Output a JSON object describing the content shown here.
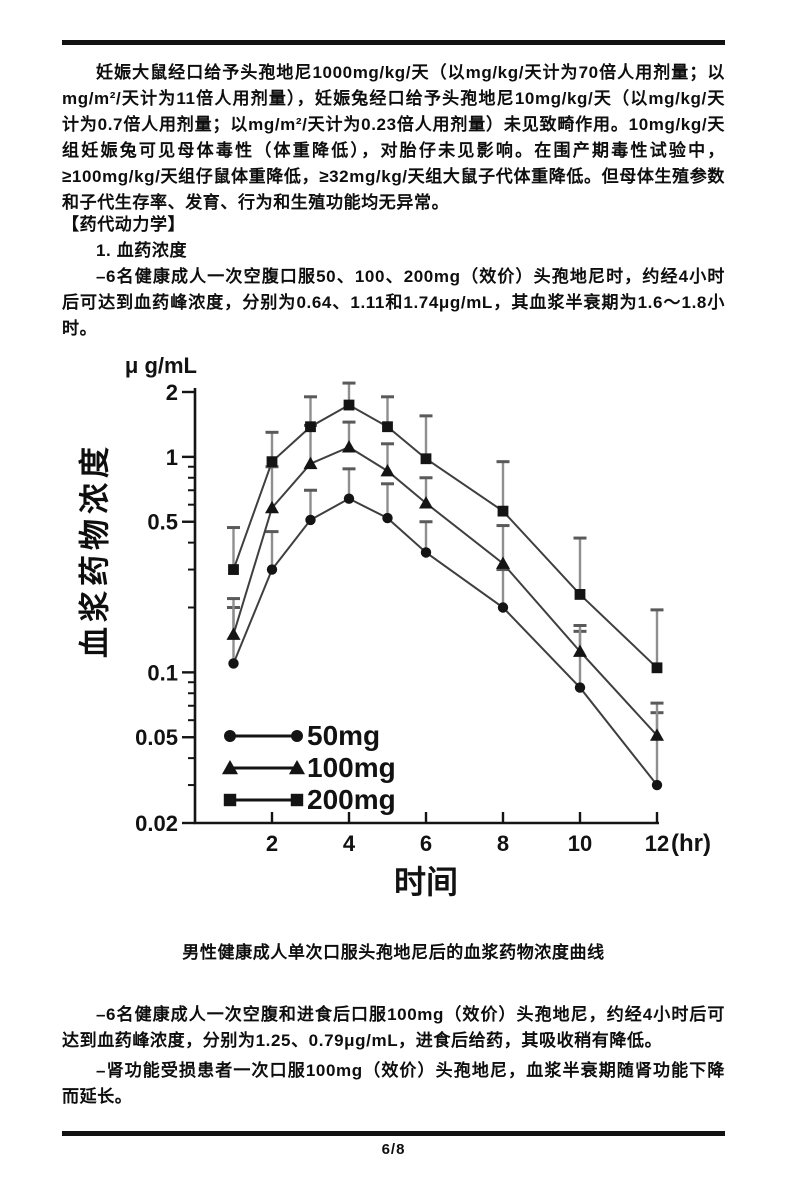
{
  "content": {
    "p_repro": "妊娠大鼠经口给予头孢地尼1000mg/kg/天（以mg/kg/天计为70倍人用剂量；以mg/m²/天计为11倍人用剂量），妊娠兔经口给予头孢地尼10mg/kg/天（以mg/kg/天计为0.7倍人用剂量；以mg/m²/天计为0.23倍人用剂量）未见致畸作用。10mg/kg/天组妊娠兔可见母体毒性（体重降低），对胎仔未见影响。在围产期毒性试验中，≥100mg/kg/天组仔鼠体重降低，≥32mg/kg/天组大鼠子代体重降低。但母体生殖参数和子代生存率、发育、行为和生殖功能均无异常。",
    "section_pk": "【药代动力学】",
    "item1": "1. 血药浓度",
    "p_single_dose": "–6名健康成人一次空腹口服50、100、200mg（效价）头孢地尼时，约经4小时后可达到血药峰浓度，分别为0.64、1.11和1.74μg/mL，其血浆半衰期为1.6～1.8小时。",
    "figure_caption": "男性健康成人单次口服头孢地尼后的血浆药物浓度曲线",
    "p_food": "–6名健康成人一次空腹和进食后口服100mg（效价）头孢地尼，约经4小时后可达到血药峰浓度，分别为1.25、0.79μg/mL，进食后给药，其吸收稍有降低。",
    "p_renal": "–肾功能受损患者一次口服100mg（效价）头孢地尼，血浆半衰期随肾功能下降而延长。"
  },
  "footer": {
    "page_number": "6/8"
  },
  "colors": {
    "ink": "#141414",
    "series_line": "#3f3f3f",
    "error_bar": "#8f8f8f",
    "error_cap": "#5a5a5a"
  },
  "chart_data": {
    "type": "line",
    "title": "男性健康成人单次口服头孢地尼后的血浆药物浓度曲线",
    "ylabel": "血浆药物浓度",
    "xlabel": "时间",
    "unit_label": "μ g/mL",
    "x_suffix": "(hr)",
    "yscale": "log",
    "grid": false,
    "legend_position": "lower-left",
    "xlim": [
      0,
      12
    ],
    "ylim": [
      0.02,
      2.33
    ],
    "xticks": [
      2,
      4,
      6,
      8,
      10,
      12
    ],
    "yticks_major": [
      2,
      1,
      0.5,
      0.1,
      0.05,
      0.02
    ],
    "ytick_labels": [
      "2",
      "1",
      "0.5",
      "0.1",
      "0.05",
      "0.02"
    ],
    "yticks_minor": [
      0.9,
      0.8,
      0.7,
      0.6,
      0.4,
      0.3,
      0.2,
      0.09,
      0.08,
      0.07,
      0.06,
      0.04,
      0.03
    ],
    "x": [
      1,
      2,
      3,
      4,
      5,
      6,
      8,
      10,
      12
    ],
    "series": [
      {
        "name": "50mg",
        "marker": "circle",
        "values": [
          0.11,
          0.3,
          0.51,
          0.64,
          0.52,
          0.36,
          0.2,
          0.085,
          0.03
        ],
        "err_upper": [
          0.2,
          0.45,
          0.7,
          0.88,
          0.75,
          0.5,
          0.3,
          0.155,
          0.065
        ]
      },
      {
        "name": "100mg",
        "marker": "triangle",
        "values": [
          0.15,
          0.58,
          0.93,
          1.11,
          0.86,
          0.61,
          0.32,
          0.125,
          0.051
        ],
        "err_upper": [
          0.22,
          0.9,
          1.4,
          1.45,
          1.15,
          0.8,
          0.48,
          0.165,
          0.072
        ]
      },
      {
        "name": "200mg",
        "marker": "square",
        "values": [
          0.3,
          0.95,
          1.38,
          1.74,
          1.38,
          0.98,
          0.56,
          0.23,
          0.105
        ],
        "err_upper": [
          0.47,
          1.3,
          1.9,
          2.2,
          1.9,
          1.55,
          0.95,
          0.42,
          0.195
        ]
      }
    ]
  }
}
